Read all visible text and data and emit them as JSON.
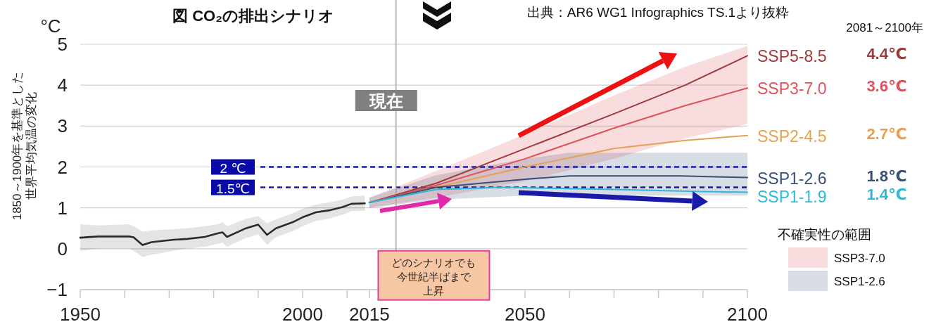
{
  "chart_data": {
    "type": "line",
    "title": "図 CO₂の排出シナリオ",
    "ylabel": "1850～1900年を基準とした世界平均気温の変化",
    "legend_title": "不確実性の範囲",
    "legend": "bottom right",
    "grid": "y",
    "marker": "none",
    "line_style": "solid",
    "xlim": [
      1950,
      2100
    ],
    "ylim": [
      -1,
      5
    ],
    "xticks": [
      1950,
      {
        "value": 1960,
        "label": null
      },
      {
        "value": 1970,
        "label": null
      },
      {
        "value": 1980,
        "label": null
      },
      {
        "value": 1990,
        "label": null
      },
      2000,
      {
        "value": 2010,
        "label": null
      },
      2015,
      {
        "value": 2020,
        "label": null
      },
      {
        "value": 2030,
        "label": null
      },
      {
        "value": 2040,
        "label": null
      },
      2050,
      {
        "value": 2060,
        "label": null
      },
      {
        "value": 2070,
        "label": null
      },
      {
        "value": 2080,
        "label": null
      },
      {
        "value": 2090,
        "label": null
      },
      2100
    ],
    "yticks": [
      {
        "value": -1,
        "label": "−1"
      },
      0,
      1,
      2,
      3,
      4,
      5
    ],
    "ref_lines": [
      {
        "axis": "y",
        "value": 2,
        "label": "2 ℃",
        "color": "#1a1aa0",
        "line_style": "dashed"
      },
      {
        "axis": "y",
        "value": 1.5,
        "label": "1.5℃",
        "color": "#1a1aa0",
        "line_style": "dashed"
      },
      {
        "axis": "x",
        "value": 2021,
        "label": "現在",
        "color": "#a0a0a0",
        "line_style": "solid"
      }
    ],
    "annotations": [
      "出典：AR6 WG1 Infographics TS.1より抜粋",
      "°C",
      "2081～2100年",
      "4.4℃",
      "3.6℃",
      "2.7℃",
      "1.8℃",
      "1.4℃",
      "どのシナリオでも",
      "今世紀半ばまで",
      "上昇"
    ],
    "series": [
      {
        "color": "#2b2b2b",
        "x": [
          1950,
          1954,
          1961,
          1962,
          1964,
          1966,
          1971,
          1974,
          1978,
          1981,
          1982,
          1983,
          1987,
          1990,
          1992,
          1994,
          1998,
          2000,
          2003,
          2006,
          2009,
          2011,
          2014
        ],
        "values": [
          0.27,
          0.3,
          0.3,
          0.28,
          0.09,
          0.16,
          0.22,
          0.24,
          0.29,
          0.38,
          0.4,
          0.29,
          0.49,
          0.59,
          0.34,
          0.5,
          0.66,
          0.77,
          0.89,
          0.94,
          1.02,
          1.1,
          1.11
        ],
        "upper": [
          0.6,
          0.57,
          0.6,
          0.55,
          0.42,
          0.45,
          0.48,
          0.5,
          0.55,
          0.6,
          0.65,
          0.55,
          0.72,
          0.8,
          0.62,
          0.72,
          0.88,
          0.98,
          1.08,
          1.13,
          1.2,
          1.28,
          1.3
        ],
        "lower": [
          -0.05,
          0.0,
          0.0,
          -0.05,
          -0.2,
          -0.15,
          -0.05,
          0.0,
          0.05,
          0.12,
          0.15,
          0.05,
          0.25,
          0.35,
          0.1,
          0.28,
          0.44,
          0.55,
          0.68,
          0.74,
          0.83,
          0.92,
          0.93
        ]
      },
      {
        "name": "SSP5-8.5",
        "color": "#a03a3a",
        "x": [
          2015,
          2030,
          2050,
          2070,
          2086,
          2100
        ],
        "values": [
          1.13,
          1.6,
          2.45,
          3.3,
          4.0,
          4.72
        ]
      },
      {
        "name": "SSP3-7.0",
        "color": "#e0505a",
        "x": [
          2015,
          2030,
          2050,
          2070,
          2086,
          2100
        ],
        "values": [
          1.13,
          1.55,
          2.2,
          2.95,
          3.5,
          3.93
        ],
        "lower": [
          1.0,
          1.25,
          1.65,
          2.2,
          2.7,
          3.05
        ],
        "upper": [
          1.25,
          1.9,
          2.8,
          3.75,
          4.45,
          4.96
        ]
      },
      {
        "name": "SSP2-4.5",
        "color": "#e8a050",
        "x": [
          2015,
          2030,
          2050,
          2070,
          2086,
          2100
        ],
        "values": [
          1.13,
          1.5,
          2.0,
          2.45,
          2.65,
          2.77
        ]
      },
      {
        "name": "SSP1-2.6",
        "color": "#3a4f78",
        "x": [
          2015,
          2030,
          2050,
          2060,
          2085,
          2100
        ],
        "values": [
          1.13,
          1.5,
          1.7,
          1.78,
          1.78,
          1.74
        ],
        "lower": [
          1.0,
          1.2,
          1.3,
          1.3,
          1.3,
          1.3
        ],
        "upper": [
          1.25,
          1.8,
          2.2,
          2.35,
          2.35,
          2.35
        ]
      },
      {
        "name": "SSP1-1.9",
        "color": "#30b8d8",
        "x": [
          2015,
          2030,
          2045,
          2070,
          2090,
          2100
        ],
        "values": [
          1.13,
          1.45,
          1.5,
          1.45,
          1.4,
          1.38
        ]
      }
    ]
  }
}
